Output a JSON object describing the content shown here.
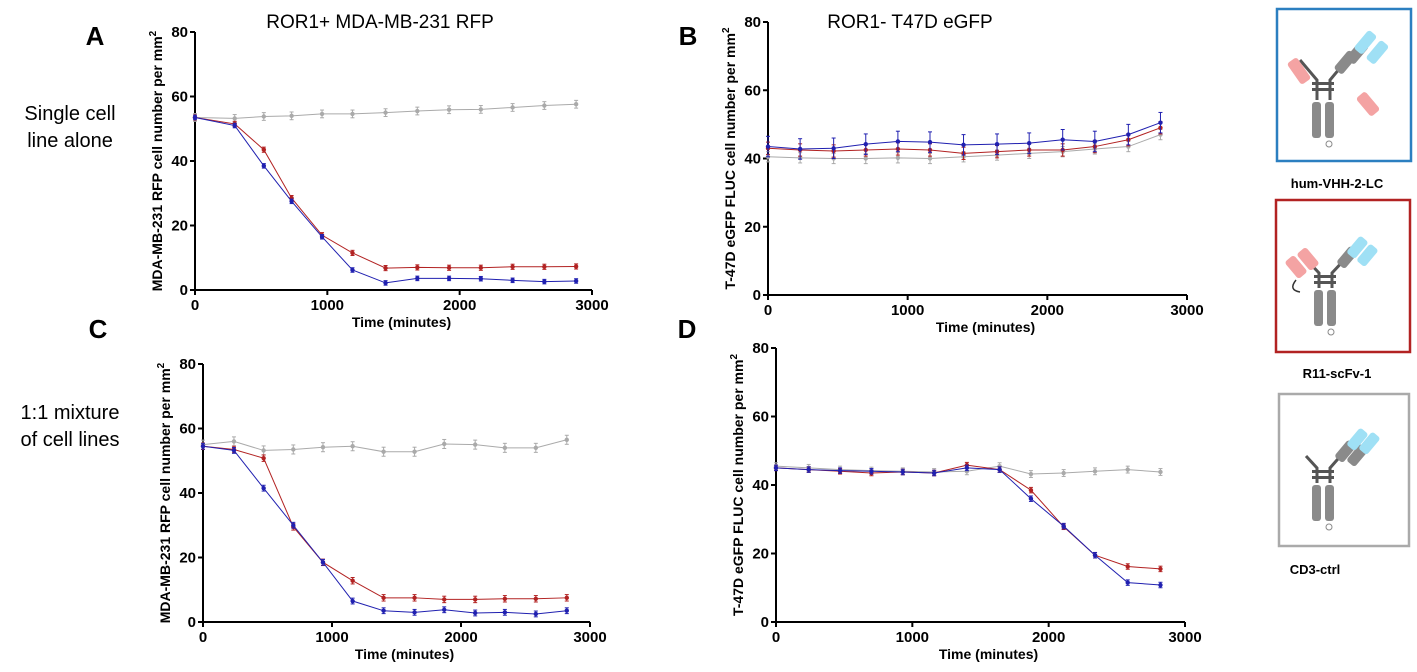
{
  "figure": {
    "column_titles": [
      "ROR1+ MDA-MB-231 RFP",
      "ROR1-  T47D eGFP"
    ],
    "row_labels": [
      [
        "Single cell",
        "line alone"
      ],
      [
        "1:1 mixture",
        "of cell lines"
      ]
    ],
    "legend": {
      "entries": [
        {
          "name": "hum-VHH-2-LC",
          "color": "#1f77b4"
        },
        {
          "name": "R11-scFv-1",
          "color": "#b22222"
        },
        {
          "name": "CD3-ctrl",
          "color": "#aaaaaa"
        }
      ]
    }
  },
  "chart_data": [
    {
      "panel": "A",
      "type": "line",
      "xlabel": "Time (minutes)",
      "ylabel": "MDA-MB-231 RFP cell number per mm",
      "ylabel_sup": "2",
      "xlim": [
        0,
        3000
      ],
      "ylim": [
        0,
        80
      ],
      "xticks": [
        0,
        1000,
        2000,
        3000
      ],
      "yticks": [
        0,
        20,
        40,
        60,
        80
      ],
      "x": [
        0,
        300,
        520,
        730,
        960,
        1190,
        1440,
        1680,
        1920,
        2160,
        2400,
        2640,
        2880
      ],
      "series": [
        {
          "name": "CD3-ctrl",
          "color": "#aaaaaa",
          "values": [
            53.5,
            53.2,
            53.8,
            54.0,
            54.6,
            54.6,
            55.0,
            55.5,
            55.9,
            56.0,
            56.6,
            57.2,
            57.6
          ],
          "err": 1.2
        },
        {
          "name": "R11-scFv-1",
          "color": "#b22222",
          "values": [
            53.5,
            51.5,
            43.5,
            28.5,
            17.0,
            11.5,
            6.8,
            7.0,
            6.9,
            6.9,
            7.2,
            7.2,
            7.3
          ],
          "err": 0.8
        },
        {
          "name": "hum-VHH-2-LC",
          "color": "#2020b0",
          "values": [
            53.5,
            51.0,
            38.5,
            27.5,
            16.5,
            6.2,
            2.2,
            3.6,
            3.6,
            3.5,
            3.0,
            2.6,
            2.8
          ],
          "err": 0.7
        }
      ]
    },
    {
      "panel": "B",
      "type": "line",
      "xlabel": "Time (minutes)",
      "ylabel": "T-47D eGFP FLUC cell number per mm",
      "ylabel_sup": "2",
      "xlim": [
        0,
        3000
      ],
      "ylim": [
        0,
        80
      ],
      "xticks": [
        0,
        1000,
        2000,
        3000
      ],
      "yticks": [
        0,
        20,
        40,
        60,
        80
      ],
      "x": [
        0,
        230,
        470,
        700,
        930,
        1160,
        1400,
        1640,
        1870,
        2110,
        2340,
        2580,
        2810
      ],
      "series": [
        {
          "name": "CD3-ctrl",
          "color": "#aaaaaa",
          "values": [
            40.5,
            40.2,
            40.0,
            40.0,
            40.2,
            40.0,
            40.5,
            41.0,
            41.5,
            42.0,
            42.8,
            43.5,
            47.0
          ],
          "err": 1.5
        },
        {
          "name": "R11-scFv-1",
          "color": "#b22222",
          "values": [
            43.0,
            42.5,
            42.2,
            42.5,
            42.8,
            42.5,
            41.5,
            42.0,
            42.5,
            42.5,
            43.5,
            45.5,
            49.0
          ],
          "err": 1.8
        },
        {
          "name": "hum-VHH-2-LC",
          "color": "#2020b0",
          "values": [
            43.5,
            42.8,
            43.0,
            44.2,
            45.0,
            44.8,
            44.0,
            44.2,
            44.5,
            45.5,
            45.0,
            47.0,
            50.5
          ],
          "err": 3.0
        }
      ]
    },
    {
      "panel": "C",
      "type": "line",
      "xlabel": "Time (minutes)",
      "ylabel": "MDA-MB-231 RFP cell number per mm",
      "ylabel_sup": "2",
      "xlim": [
        0,
        3000
      ],
      "ylim": [
        0,
        80
      ],
      "xticks": [
        0,
        1000,
        2000,
        3000
      ],
      "yticks": [
        0,
        20,
        40,
        60,
        80
      ],
      "x": [
        0,
        240,
        470,
        700,
        930,
        1160,
        1400,
        1640,
        1870,
        2110,
        2340,
        2580,
        2820
      ],
      "series": [
        {
          "name": "CD3-ctrl",
          "color": "#aaaaaa",
          "values": [
            55.0,
            56.0,
            53.2,
            53.5,
            54.2,
            54.5,
            52.8,
            52.8,
            55.2,
            55.0,
            54.0,
            54.0,
            56.5
          ],
          "err": 1.4
        },
        {
          "name": "R11-scFv-1",
          "color": "#b22222",
          "values": [
            54.5,
            53.5,
            50.8,
            29.5,
            18.5,
            12.8,
            7.5,
            7.5,
            7.0,
            7.0,
            7.2,
            7.2,
            7.5
          ],
          "err": 1.0
        },
        {
          "name": "hum-VHH-2-LC",
          "color": "#2020b0",
          "values": [
            54.5,
            53.2,
            41.5,
            30.0,
            18.5,
            6.5,
            3.5,
            3.0,
            3.8,
            2.8,
            3.0,
            2.5,
            3.5
          ],
          "err": 0.9
        }
      ]
    },
    {
      "panel": "D",
      "type": "line",
      "xlabel": "Time (minutes)",
      "ylabel": "T-47D eGFP FLUC cell number per mm",
      "ylabel_sup": "2",
      "xlim": [
        0,
        3000
      ],
      "ylim": [
        0,
        80
      ],
      "xticks": [
        0,
        1000,
        2000,
        3000
      ],
      "yticks": [
        0,
        20,
        40,
        60,
        80
      ],
      "x": [
        0,
        240,
        470,
        700,
        930,
        1160,
        1400,
        1640,
        1870,
        2110,
        2340,
        2580,
        2820
      ],
      "series": [
        {
          "name": "CD3-ctrl",
          "color": "#aaaaaa",
          "values": [
            45.5,
            45.0,
            44.5,
            44.2,
            44.0,
            43.8,
            44.0,
            45.5,
            43.2,
            43.5,
            44.0,
            44.5,
            43.8
          ],
          "err": 1.0
        },
        {
          "name": "R11-scFv-1",
          "color": "#b22222",
          "values": [
            45.0,
            44.5,
            44.0,
            43.5,
            43.8,
            43.5,
            45.8,
            44.5,
            38.5,
            27.8,
            19.5,
            16.2,
            15.5
          ],
          "err": 0.8
        },
        {
          "name": "hum-VHH-2-LC",
          "color": "#2020b0",
          "values": [
            45.0,
            44.5,
            44.2,
            44.0,
            43.8,
            43.5,
            45.0,
            44.5,
            36.0,
            28.0,
            19.5,
            11.5,
            10.8
          ],
          "err": 0.8
        }
      ]
    }
  ]
}
